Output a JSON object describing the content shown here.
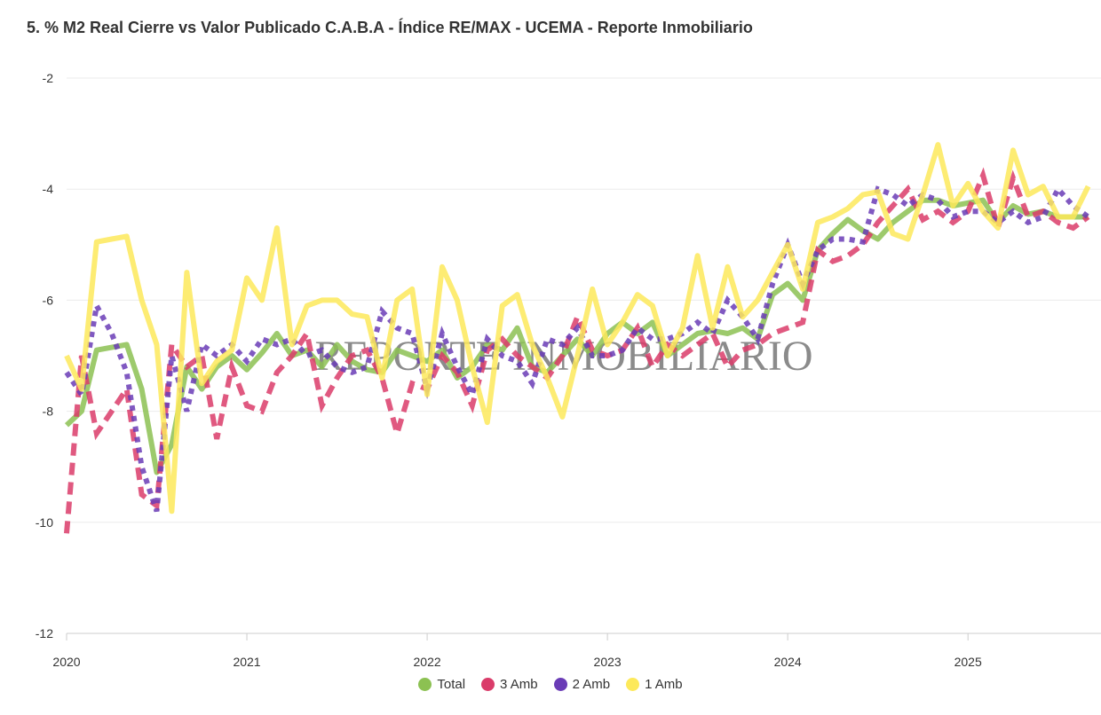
{
  "title": "5. % M2 Real Cierre vs Valor Publicado C.A.B.A - Índice RE/MAX - UCEMA - Reporte Inmobiliario",
  "watermark": "REPORTE INMOBILIARIO",
  "chart_data": {
    "type": "line",
    "title": "5. % M2 Real Cierre vs Valor Publicado C.A.B.A - Índice RE/MAX - UCEMA - Reporte Inmobiliario",
    "xlabel": "",
    "ylabel": "",
    "ylim": [
      -12,
      -2
    ],
    "yticks": [
      "-2",
      "-4",
      "-6",
      "-8",
      "-10",
      "-12"
    ],
    "xticks": [
      "2020",
      "2021",
      "2022",
      "2023",
      "2024",
      "2025"
    ],
    "grid": true,
    "legend": "bottom",
    "x": [
      "2020-01",
      "2020-02",
      "2020-03",
      "2020-04",
      "2020-05",
      "2020-06",
      "2020-07",
      "2020-08",
      "2020-09",
      "2020-10",
      "2020-11",
      "2020-12",
      "2021-01",
      "2021-02",
      "2021-03",
      "2021-04",
      "2021-05",
      "2021-06",
      "2021-07",
      "2021-08",
      "2021-09",
      "2021-10",
      "2021-11",
      "2021-12",
      "2022-01",
      "2022-02",
      "2022-03",
      "2022-04",
      "2022-05",
      "2022-06",
      "2022-07",
      "2022-08",
      "2022-09",
      "2022-10",
      "2022-11",
      "2022-12",
      "2023-01",
      "2023-02",
      "2023-03",
      "2023-04",
      "2023-05",
      "2023-06",
      "2023-07",
      "2023-08",
      "2023-09",
      "2023-10",
      "2023-11",
      "2023-12",
      "2024-01",
      "2024-02",
      "2024-03",
      "2024-04",
      "2024-05",
      "2024-06",
      "2024-07",
      "2024-08",
      "2024-09",
      "2024-10",
      "2024-11",
      "2024-12",
      "2025-01",
      "2025-02",
      "2025-03",
      "2025-04",
      "2025-05",
      "2025-06",
      "2025-07",
      "2025-08",
      "2025-09"
    ],
    "series": [
      {
        "name": "Total",
        "color": "#8cc152",
        "style": "solid",
        "values": [
          -8.25,
          -8.0,
          -6.9,
          -6.85,
          -6.8,
          -7.6,
          -9.1,
          -8.6,
          -7.2,
          -7.6,
          -7.2,
          -7.0,
          -7.25,
          -6.95,
          -6.6,
          -7.0,
          -6.9,
          -7.2,
          -6.8,
          -7.1,
          -7.25,
          -7.3,
          -6.9,
          -7.0,
          -7.1,
          -6.9,
          -7.4,
          -7.2,
          -6.8,
          -6.9,
          -6.5,
          -7.2,
          -7.3,
          -7.0,
          -6.7,
          -7.0,
          -6.6,
          -6.4,
          -6.6,
          -6.4,
          -7.0,
          -6.8,
          -6.6,
          -6.55,
          -6.6,
          -6.5,
          -6.7,
          -5.9,
          -5.7,
          -6.0,
          -5.1,
          -4.8,
          -4.55,
          -4.75,
          -4.9,
          -4.6,
          -4.4,
          -4.2,
          -4.2,
          -4.3,
          -4.25,
          -4.2,
          -4.6,
          -4.3,
          -4.45,
          -4.4,
          -4.5,
          -4.5,
          -4.5
        ]
      },
      {
        "name": "3 Amb",
        "color": "#da3c6a",
        "style": "dashed",
        "values": [
          -10.2,
          -7.0,
          -8.4,
          -8.0,
          -7.6,
          -9.5,
          -9.7,
          -6.8,
          -7.2,
          -7.0,
          -8.5,
          -7.2,
          -7.9,
          -8.0,
          -7.3,
          -7.0,
          -6.6,
          -7.9,
          -7.4,
          -7.0,
          -6.9,
          -7.4,
          -8.4,
          -7.5,
          -7.6,
          -7.0,
          -7.3,
          -7.9,
          -6.9,
          -6.7,
          -7.0,
          -7.2,
          -7.4,
          -7.0,
          -6.3,
          -6.9,
          -7.0,
          -6.9,
          -6.5,
          -7.2,
          -6.8,
          -7.0,
          -6.8,
          -6.6,
          -7.2,
          -6.9,
          -6.8,
          -6.6,
          -6.5,
          -6.4,
          -5.1,
          -5.3,
          -5.2,
          -5.0,
          -4.6,
          -4.3,
          -4.0,
          -4.55,
          -4.4,
          -4.6,
          -4.4,
          -3.75,
          -4.7,
          -3.8,
          -4.5,
          -4.4,
          -4.6,
          -4.7,
          -4.5
        ]
      },
      {
        "name": "2 Amb",
        "color": "#6a3cb6",
        "style": "dotted",
        "values": [
          -7.3,
          -7.7,
          -6.1,
          -6.6,
          -7.3,
          -9.0,
          -9.8,
          -7.0,
          -8.0,
          -6.8,
          -7.0,
          -6.8,
          -7.1,
          -6.7,
          -6.8,
          -6.7,
          -7.0,
          -6.9,
          -7.2,
          -7.3,
          -7.2,
          -6.2,
          -6.5,
          -6.6,
          -7.6,
          -6.6,
          -7.2,
          -7.7,
          -6.7,
          -7.0,
          -7.1,
          -7.5,
          -6.7,
          -6.8,
          -6.5,
          -7.0,
          -7.0,
          -6.9,
          -6.5,
          -6.7,
          -6.7,
          -6.6,
          -6.4,
          -6.6,
          -6.0,
          -6.3,
          -6.7,
          -5.7,
          -5.0,
          -5.7,
          -5.1,
          -4.9,
          -4.9,
          -4.95,
          -4.0,
          -4.1,
          -4.3,
          -4.1,
          -4.2,
          -4.5,
          -4.4,
          -4.4,
          -4.6,
          -4.4,
          -4.6,
          -4.5,
          -4.0,
          -4.3,
          -4.5
        ]
      },
      {
        "name": "1 Amb",
        "color": "#fde95a",
        "style": "solid",
        "values": [
          -7.0,
          -7.6,
          -4.95,
          -4.9,
          -4.85,
          -6.0,
          -6.8,
          -9.8,
          -5.5,
          -7.5,
          -7.1,
          -6.9,
          -5.6,
          -6.0,
          -4.7,
          -6.8,
          -6.1,
          -6.0,
          -6.0,
          -6.25,
          -6.3,
          -7.4,
          -6.0,
          -5.8,
          -7.7,
          -5.4,
          -6.0,
          -7.2,
          -8.2,
          -6.1,
          -5.9,
          -6.8,
          -7.4,
          -8.1,
          -7.0,
          -5.8,
          -6.8,
          -6.4,
          -5.9,
          -6.1,
          -7.0,
          -6.5,
          -5.2,
          -6.5,
          -5.4,
          -6.3,
          -6.0,
          -5.5,
          -5.0,
          -5.8,
          -4.6,
          -4.5,
          -4.35,
          -4.1,
          -4.05,
          -4.8,
          -4.9,
          -4.1,
          -3.2,
          -4.3,
          -3.9,
          -4.4,
          -4.7,
          -3.3,
          -4.1,
          -3.95,
          -4.5,
          -4.5,
          -3.95
        ]
      }
    ]
  }
}
